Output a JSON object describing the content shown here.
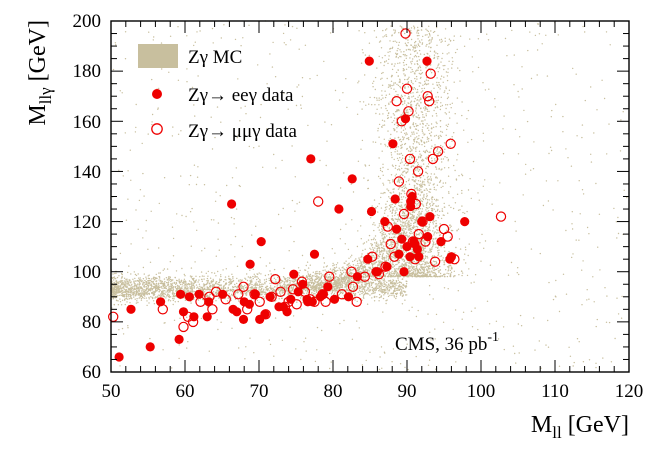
{
  "chart_data": {
    "type": "scatter",
    "xlabel_base": "M",
    "xlabel_sub": "ll",
    "xlabel_unit": " [GeV]",
    "ylabel_base": "M",
    "ylabel_sub": "llγ",
    "ylabel_unit": " [GeV]",
    "xlim": [
      50,
      120
    ],
    "ylim": [
      60,
      200
    ],
    "xticks": [
      50,
      60,
      70,
      80,
      90,
      100,
      110,
      120
    ],
    "yticks": [
      60,
      80,
      100,
      120,
      140,
      160,
      180,
      200
    ],
    "x_tick_labels": [
      "50",
      "60",
      "70",
      "80",
      "90",
      "100",
      "110",
      "120"
    ],
    "y_tick_labels": [
      "60",
      "80",
      "100",
      "120",
      "140",
      "160",
      "180",
      "200"
    ],
    "grid": false,
    "legend_position": "top-left",
    "annotation": {
      "text": "CMS, 36 pb",
      "superscript": "-1"
    },
    "colors": {
      "mc": "#c8bf9e",
      "data": "#ee0000"
    },
    "series": [
      {
        "name": "Zγ MC",
        "marker": "dots",
        "x": [],
        "y": []
      },
      {
        "name": "Zγ→ eeγ data",
        "marker": "filled-circle",
        "x": [
          51.1,
          52.7,
          55.3,
          56.7,
          59.2,
          59.4,
          59.8,
          60.6,
          61.2,
          61.9,
          63.0,
          63.2,
          65.1,
          66.3,
          66.5,
          67.0,
          67.9,
          68.0,
          68.7,
          68.8,
          69.5,
          70.1,
          70.3,
          70.8,
          71.5,
          72.7,
          73.3,
          73.8,
          74.3,
          74.7,
          75.3,
          75.9,
          76.5,
          76.6,
          77.0,
          77.2,
          77.5,
          78.3,
          78.7,
          79.3,
          80.2,
          80.8,
          82.1,
          82.6,
          83.3,
          84.7,
          84.9,
          85.2,
          85.8,
          86.0,
          87.0,
          87.3,
          88.1,
          88.4,
          88.6,
          88.9,
          89.3,
          89.6,
          89.8,
          90.0,
          90.4,
          90.5,
          90.5,
          90.7,
          90.9,
          91.1,
          91.4,
          91.6,
          92.0,
          92.7,
          92.8,
          93.1,
          94.6,
          95.8,
          96.0,
          97.8
        ],
        "y": [
          66,
          85,
          70,
          88,
          73,
          91,
          84,
          90,
          82,
          91,
          82,
          88,
          91,
          127,
          85,
          84,
          81,
          88,
          87,
          103,
          91,
          81,
          112,
          83,
          90,
          86,
          86,
          84,
          89,
          99,
          92,
          95,
          89,
          88,
          145,
          88,
          107,
          90,
          91,
          94,
          89,
          125,
          90,
          137,
          98,
          105,
          184,
          124,
          100,
          100,
          120,
          102,
          151,
          129,
          117,
          107,
          113,
          100,
          161,
          110,
          106,
          126,
          128,
          130,
          112,
          111,
          109,
          106,
          120,
          184,
          114,
          122,
          112,
          105,
          106,
          120
        ]
      },
      {
        "name": "Zγ→ μμγ data",
        "marker": "open-circle",
        "x": [
          50.3,
          57.0,
          59.8,
          60.4,
          61.1,
          62.1,
          63.3,
          63.7,
          64.2,
          65.5,
          67.2,
          67.9,
          68.4,
          69.4,
          70.1,
          70.9,
          71.7,
          72.2,
          72.9,
          73.5,
          74.0,
          74.6,
          75.1,
          75.8,
          76.2,
          76.9,
          77.5,
          78.0,
          78.6,
          79.0,
          79.5,
          81.2,
          82.5,
          82.7,
          83.2,
          84.3,
          85.3,
          86.2,
          87.1,
          87.4,
          87.8,
          88.3,
          88.6,
          88.9,
          89.3,
          89.6,
          89.8,
          90.0,
          90.2,
          90.4,
          90.6,
          90.8,
          91.1,
          91.2,
          91.5,
          91.6,
          92.1,
          92.5,
          92.8,
          93.0,
          93.2,
          93.5,
          93.8,
          94.2,
          95.0,
          95.5,
          95.9,
          96.4,
          102.7
        ],
        "y": [
          82,
          85,
          78,
          82,
          80,
          88,
          90,
          85,
          92,
          89,
          91,
          94,
          85,
          91,
          88,
          83,
          90,
          97,
          92,
          86,
          88,
          93,
          87,
          96,
          92,
          89,
          88,
          128,
          91,
          88,
          98,
          91,
          100,
          94,
          88,
          98,
          106,
          99,
          102,
          118,
          111,
          106,
          168,
          136,
          160,
          123,
          195,
          173,
          164,
          145,
          131,
          112,
          105,
          127,
          140,
          115,
          120,
          112,
          170,
          168,
          179,
          145,
          104,
          148,
          117,
          114,
          151,
          105,
          122
        ]
      }
    ]
  }
}
